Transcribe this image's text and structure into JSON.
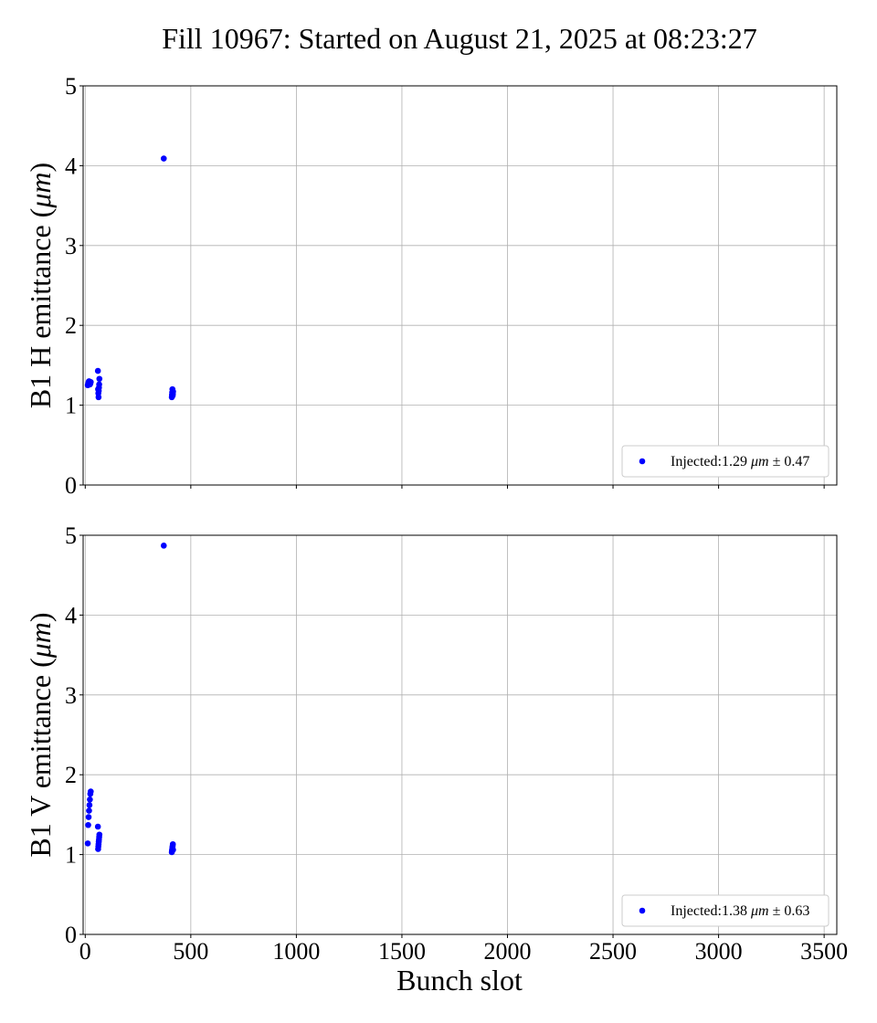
{
  "title": "Fill 10967: Started on August 21, 2025 at 08:23:27",
  "marker_color": "#0000ff",
  "chart_data": [
    {
      "type": "scatter",
      "ylabel_main": "B1 H emittance (",
      "ylabel_unit": "μm",
      "ylabel_close": ")",
      "xlabel": "",
      "xlim": [
        -10,
        3560
      ],
      "ylim": [
        0,
        5
      ],
      "xticks": [
        0,
        500,
        1000,
        1500,
        2000,
        2500,
        3000,
        3500
      ],
      "yticks": [
        0,
        1,
        2,
        3,
        4,
        5
      ],
      "show_xticklabels": false,
      "grid": true,
      "legend_position": "lower-right",
      "legend": {
        "prefix": "Injected:",
        "value": "1.29",
        "unit": "μm",
        "pm": "±",
        "spread": "0.47"
      },
      "series": [
        {
          "x": [
            12,
            14,
            16,
            18,
            20,
            22,
            24,
            26,
            60,
            61,
            62,
            63,
            64,
            65,
            66,
            67,
            372,
            410,
            411,
            412,
            413,
            414,
            415,
            416
          ],
          "y": [
            1.25,
            1.27,
            1.29,
            1.3,
            1.28,
            1.26,
            1.27,
            1.29,
            1.43,
            1.2,
            1.15,
            1.1,
            1.18,
            1.22,
            1.26,
            1.33,
            4.09,
            1.1,
            1.13,
            1.16,
            1.2,
            1.12,
            1.14,
            1.17
          ]
        }
      ]
    },
    {
      "type": "scatter",
      "ylabel_main": "B1 V emittance (",
      "ylabel_unit": "μm",
      "ylabel_close": ")",
      "xlabel": "Bunch slot",
      "xlim": [
        -10,
        3560
      ],
      "ylim": [
        0,
        5
      ],
      "xticks": [
        0,
        500,
        1000,
        1500,
        2000,
        2500,
        3000,
        3500
      ],
      "yticks": [
        0,
        1,
        2,
        3,
        4,
        5
      ],
      "show_xticklabels": true,
      "grid": true,
      "legend_position": "lower-right",
      "legend": {
        "prefix": "Injected:",
        "value": "1.38",
        "unit": "μm",
        "pm": "±",
        "spread": "0.63"
      },
      "series": [
        {
          "x": [
            12,
            14,
            16,
            18,
            20,
            22,
            24,
            26,
            60,
            61,
            62,
            63,
            64,
            65,
            66,
            67,
            372,
            410,
            411,
            412,
            413,
            414,
            415,
            416
          ],
          "y": [
            1.14,
            1.37,
            1.47,
            1.55,
            1.62,
            1.69,
            1.76,
            1.79,
            1.35,
            1.07,
            1.1,
            1.13,
            1.16,
            1.19,
            1.22,
            1.25,
            4.87,
            1.03,
            1.05,
            1.07,
            1.09,
            1.11,
            1.13,
            1.06
          ]
        }
      ]
    }
  ]
}
